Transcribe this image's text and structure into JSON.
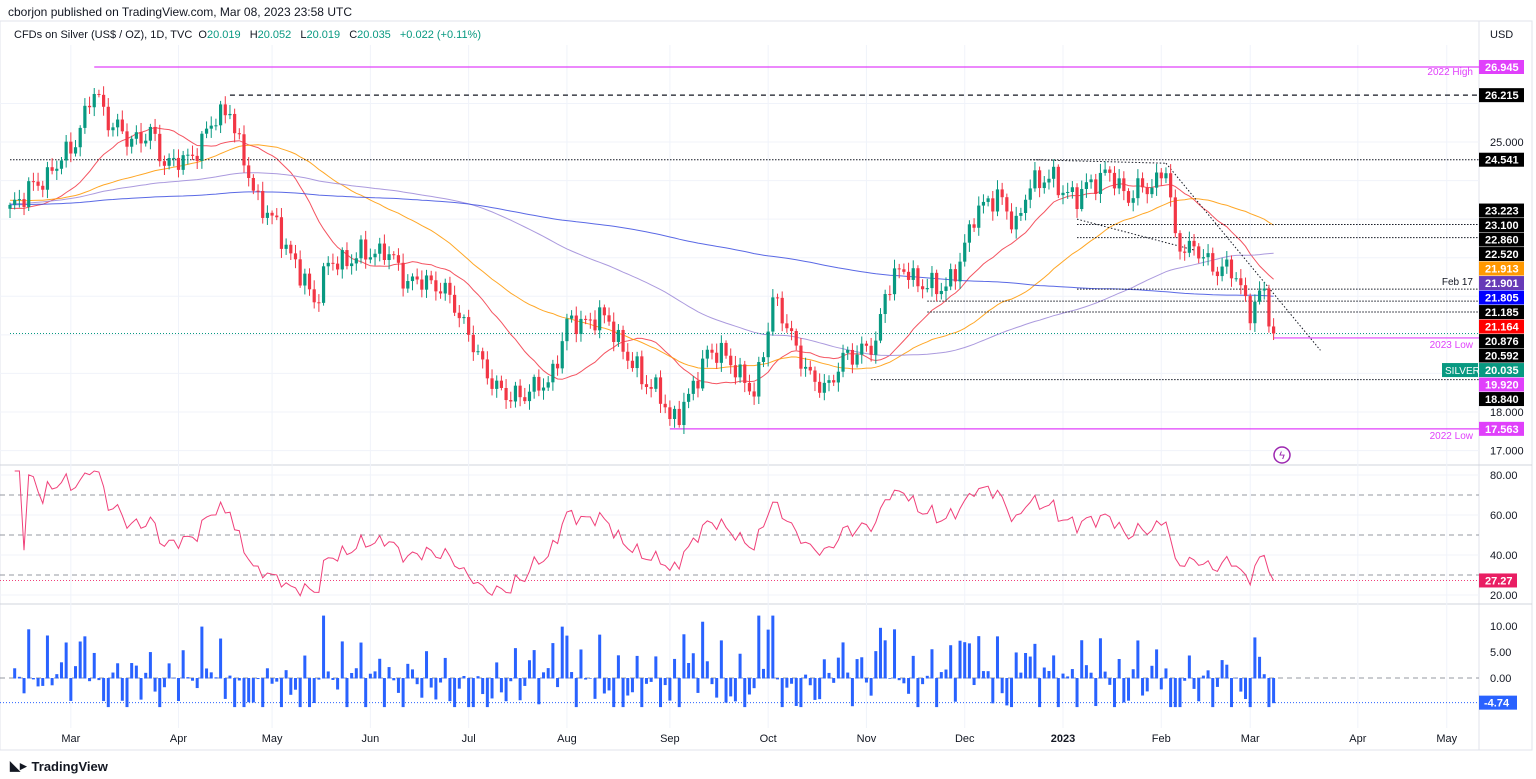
{
  "header": {
    "published": "cborjon published on TradingView.com, Mar 08, 2023 23:58 UTC",
    "symbol": "CFDs on Silver (US$ / OZ), 1D, TVC",
    "o_label": "O",
    "o": "20.019",
    "h_label": "H",
    "h": "20.052",
    "l_label": "L",
    "l": "20.019",
    "c_label": "C",
    "c": "20.035",
    "change": "+0.022 (+0.11%)",
    "currency": "USD"
  },
  "brand": "TradingView",
  "colors": {
    "up": "#089981",
    "down": "#f23645",
    "ma20": "#f23645",
    "ma50": "#ff9800",
    "ma100": "#9c88d8",
    "ma200": "#3d4fe0",
    "rsi": "#f0407a",
    "hist": "#2962ff",
    "magenta": "#e040fb"
  },
  "price_axis": {
    "ticks": [
      "25.000",
      "18.000",
      "17.000"
    ],
    "tick_values": [
      25,
      18,
      17
    ]
  },
  "levels": [
    {
      "value": 26.945,
      "label": "26.945",
      "note": "2022 High",
      "style": "magenta",
      "from": 18
    },
    {
      "value": 26.215,
      "label": "26.215",
      "style": "dashed",
      "from": 47
    },
    {
      "value": 24.541,
      "label": "24.541",
      "style": "dotted",
      "from": 0
    },
    {
      "value": 23.223,
      "label": "23.223",
      "style": "none",
      "from": 218
    },
    {
      "value": 23.1,
      "label": "23.100",
      "style": "none",
      "from": 218
    },
    {
      "value": 22.86,
      "label": "22.860",
      "style": "dotted",
      "from": 228
    },
    {
      "value": 22.52,
      "label": "22.520",
      "style": "dotted",
      "from": 228
    },
    {
      "value": 21.913,
      "label": "21.913",
      "style": "orange",
      "from": 0
    },
    {
      "value": 21.901,
      "label": "21.901",
      "style": "purple",
      "from": 0
    },
    {
      "value": 21.805,
      "label": "21.805",
      "style": "blue",
      "from": 0
    },
    {
      "value": 21.185,
      "label": "21.185",
      "note": "Feb 17",
      "style": "dotted",
      "from": 228
    },
    {
      "value": 21.164,
      "label": "21.164",
      "style": "red",
      "from": 0
    },
    {
      "value": 20.876,
      "label": "20.876",
      "style": "dotted",
      "from": 196
    },
    {
      "value": 20.592,
      "label": "20.592",
      "style": "dotted",
      "from": 196
    },
    {
      "value": 20.035,
      "label": "20.035",
      "note": "SILVER",
      "style": "current",
      "from": 0
    },
    {
      "value": 19.92,
      "label": "19.920",
      "note": "2023 Low",
      "style": "magenta",
      "from": 270
    },
    {
      "value": 18.84,
      "label": "18.840",
      "style": "dotted",
      "from": 184
    },
    {
      "value": 17.563,
      "label": "17.563",
      "note": "2022 Low",
      "style": "magenta",
      "from": 141
    }
  ],
  "rsi": {
    "ticks": [
      "80.00",
      "60.00",
      "40.00",
      "20.00"
    ],
    "tick_values": [
      80,
      60,
      40,
      20
    ],
    "current": "27.27",
    "current_value": 27.27
  },
  "momentum": {
    "ticks": [
      "10.00",
      "5.00",
      "0.00"
    ],
    "tick_values": [
      10,
      5,
      0
    ],
    "current": "-4.74",
    "current_value": -4.74
  },
  "time_axis": [
    {
      "label": "Mar",
      "day": 13
    },
    {
      "label": "Apr",
      "day": 36
    },
    {
      "label": "May",
      "day": 56
    },
    {
      "label": "Jun",
      "day": 77
    },
    {
      "label": "Jul",
      "day": 98
    },
    {
      "label": "Aug",
      "day": 119
    },
    {
      "label": "Sep",
      "day": 141
    },
    {
      "label": "Oct",
      "day": 162
    },
    {
      "label": "Nov",
      "day": 183
    },
    {
      "label": "Dec",
      "day": 204
    },
    {
      "label": "2023",
      "day": 225
    },
    {
      "label": "Feb",
      "day": 246
    },
    {
      "label": "Mar",
      "day": 265
    },
    {
      "label": "Apr",
      "day": 288
    },
    {
      "label": "May",
      "day": 307
    }
  ],
  "chart_data": {
    "type": "candlestick",
    "title": "CFDs on Silver (US$ / OZ), 1D, TVC",
    "ylabel": "USD",
    "ylim": [
      16.7,
      27.8
    ],
    "close_path": [
      [
        0,
        23.37
      ],
      [
        6,
        23.9
      ],
      [
        13,
        24.8
      ],
      [
        18,
        26.3
      ],
      [
        21,
        25.6
      ],
      [
        25,
        25.05
      ],
      [
        30,
        25.2
      ],
      [
        33,
        24.5
      ],
      [
        38,
        24.5
      ],
      [
        44,
        25.6
      ],
      [
        47,
        25.9
      ],
      [
        49,
        24.8
      ],
      [
        53,
        23.5
      ],
      [
        58,
        22.6
      ],
      [
        62,
        21.55
      ],
      [
        65,
        20.9
      ],
      [
        68,
        21.8
      ],
      [
        75,
        22.07
      ],
      [
        80,
        22.2
      ],
      [
        85,
        21.4
      ],
      [
        92,
        21.3
      ],
      [
        98,
        20.1
      ],
      [
        101,
        19.1
      ],
      [
        107,
        18.3
      ],
      [
        111,
        18.6
      ],
      [
        115,
        18.7
      ],
      [
        119,
        20.25
      ],
      [
        124,
        20.4
      ],
      [
        128,
        20.4
      ],
      [
        132,
        19.35
      ],
      [
        139,
        18.4
      ],
      [
        141,
        17.8
      ],
      [
        145,
        18.3
      ],
      [
        149,
        19.6
      ],
      [
        154,
        19.35
      ],
      [
        159,
        18.4
      ],
      [
        163,
        20.9
      ],
      [
        167,
        20.0
      ],
      [
        171,
        18.8
      ],
      [
        175,
        18.7
      ],
      [
        179,
        19.5
      ],
      [
        185,
        19.7
      ],
      [
        187,
        21.2
      ],
      [
        191,
        21.7
      ],
      [
        196,
        21.2
      ],
      [
        200,
        21.3
      ],
      [
        203,
        21.8
      ],
      [
        206,
        23.2
      ],
      [
        212,
        23.6
      ],
      [
        215,
        22.7
      ],
      [
        218,
        24.0
      ],
      [
        223,
        24.0
      ],
      [
        228,
        23.5
      ],
      [
        231,
        24.0
      ],
      [
        235,
        24.15
      ],
      [
        239,
        23.6
      ],
      [
        244,
        23.9
      ],
      [
        247,
        24.3
      ],
      [
        249,
        22.45
      ],
      [
        253,
        22.2
      ],
      [
        257,
        21.8
      ],
      [
        262,
        21.55
      ],
      [
        265,
        20.6
      ],
      [
        268,
        21.1
      ],
      [
        270,
        20.035
      ]
    ],
    "moving_averages": [
      20,
      50,
      100,
      200
    ],
    "indicators": [
      "RSI 14",
      "Momentum histogram"
    ]
  }
}
